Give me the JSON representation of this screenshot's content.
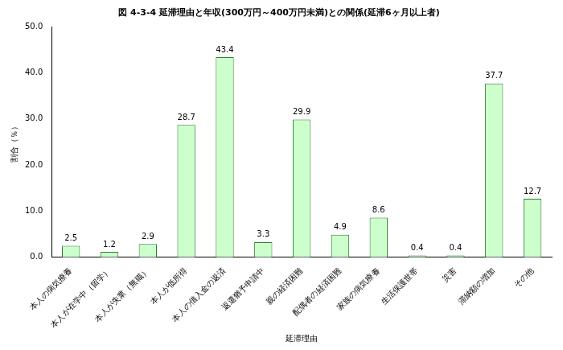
{
  "chart_data": {
    "type": "bar",
    "title": "図 4-3-4 延滞理由と年収(300万円～400万円未満)との関係(延滞6ヶ月以上者)",
    "x_label": "延滞理由",
    "y_label": "割合（％）",
    "categories": [
      "本人の病気療養",
      "本人が在学中（留学）",
      "本人が失業（無職）",
      "本人が低所得",
      "本人の借入金の返済",
      "返還猶予申請中",
      "親の経済困難",
      "配偶者の経済困難",
      "家族の病気療養",
      "生活保護世帯",
      "災害",
      "滞納額の増加",
      "その他"
    ],
    "values": [
      2.5,
      1.2,
      2.9,
      28.7,
      43.4,
      3.3,
      29.9,
      4.9,
      8.6,
      0.4,
      0.4,
      37.7,
      12.7
    ],
    "color": "#ccffcc",
    "ylim": [
      0,
      50
    ],
    "yticks": [
      {
        "value": 0,
        "label": "0.0"
      },
      {
        "value": 10,
        "label": "10.0"
      },
      {
        "value": 20,
        "label": "20.0"
      },
      {
        "value": 30,
        "label": "30.0"
      },
      {
        "value": 40,
        "label": "40.0"
      },
      {
        "value": 50,
        "label": "50.0"
      }
    ],
    "grid": false,
    "data_labels": true
  }
}
